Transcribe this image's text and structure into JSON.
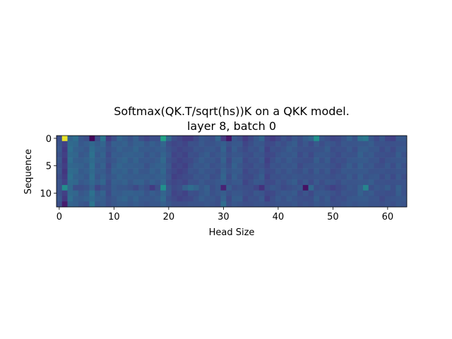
{
  "chart_data": {
    "type": "heatmap",
    "title_line1": "Softmax(QK.T/sqrt(hs))K on a QKK model.",
    "title_line2": "layer 8, batch 0",
    "xlabel": "Head Size",
    "ylabel": "Sequence",
    "xlim": [
      -0.5,
      63.5
    ],
    "ylim": [
      12.5,
      -0.5
    ],
    "xticks": [
      0,
      10,
      20,
      30,
      40,
      50,
      60
    ],
    "yticks": [
      0,
      5,
      10
    ],
    "colormap": "viridis",
    "n_rows": 13,
    "n_cols": 64,
    "row0": [
      0.3,
      0.98,
      0.4,
      0.45,
      0.34,
      0.3,
      0.02,
      0.3,
      0.48,
      0.22,
      0.3,
      0.4,
      0.36,
      0.32,
      0.38,
      0.3,
      0.26,
      0.3,
      0.3,
      0.72,
      0.42,
      0.3,
      0.26,
      0.22,
      0.22,
      0.28,
      0.34,
      0.32,
      0.3,
      0.4,
      0.22,
      0.08,
      0.34,
      0.3,
      0.22,
      0.28,
      0.34,
      0.4,
      0.26,
      0.22,
      0.26,
      0.32,
      0.28,
      0.34,
      0.3,
      0.36,
      0.4,
      0.62,
      0.34,
      0.3,
      0.26,
      0.28,
      0.32,
      0.38,
      0.32,
      0.46,
      0.5,
      0.34,
      0.28,
      0.34,
      0.26,
      0.24,
      0.34,
      0.34
    ],
    "rows_mid": [
      0.32,
      0.22,
      0.44,
      0.4,
      0.36,
      0.36,
      0.44,
      0.36,
      0.38,
      0.3,
      0.36,
      0.38,
      0.38,
      0.36,
      0.38,
      0.36,
      0.34,
      0.36,
      0.36,
      0.4,
      0.32,
      0.26,
      0.26,
      0.26,
      0.3,
      0.32,
      0.34,
      0.34,
      0.32,
      0.32,
      0.38,
      0.3,
      0.36,
      0.34,
      0.28,
      0.3,
      0.32,
      0.34,
      0.26,
      0.3,
      0.32,
      0.32,
      0.34,
      0.34,
      0.3,
      0.32,
      0.3,
      0.34,
      0.32,
      0.34,
      0.3,
      0.3,
      0.32,
      0.34,
      0.32,
      0.36,
      0.34,
      0.34,
      0.32,
      0.3,
      0.32,
      0.3,
      0.34,
      0.32
    ],
    "row9": [
      0.32,
      0.6,
      0.42,
      0.3,
      0.3,
      0.32,
      0.38,
      0.26,
      0.32,
      0.3,
      0.36,
      0.34,
      0.34,
      0.32,
      0.28,
      0.34,
      0.3,
      0.22,
      0.3,
      0.62,
      0.34,
      0.28,
      0.3,
      0.38,
      0.44,
      0.4,
      0.34,
      0.38,
      0.3,
      0.34,
      0.12,
      0.36,
      0.3,
      0.32,
      0.3,
      0.3,
      0.26,
      0.18,
      0.3,
      0.34,
      0.32,
      0.28,
      0.3,
      0.32,
      0.34,
      0.06,
      0.42,
      0.3,
      0.32,
      0.28,
      0.24,
      0.28,
      0.3,
      0.34,
      0.32,
      0.38,
      0.56,
      0.3,
      0.34,
      0.32,
      0.36,
      0.3,
      0.38,
      0.32
    ],
    "row12": [
      0.3,
      0.1,
      0.4,
      0.38,
      0.34,
      0.32,
      0.48,
      0.34,
      0.36,
      0.3,
      0.34,
      0.36,
      0.36,
      0.34,
      0.36,
      0.34,
      0.32,
      0.34,
      0.34,
      0.38,
      0.34,
      0.3,
      0.3,
      0.3,
      0.32,
      0.32,
      0.32,
      0.34,
      0.32,
      0.3,
      0.44,
      0.3,
      0.34,
      0.32,
      0.3,
      0.3,
      0.32,
      0.32,
      0.3,
      0.3,
      0.32,
      0.32,
      0.32,
      0.34,
      0.3,
      0.32,
      0.3,
      0.34,
      0.32,
      0.34,
      0.3,
      0.3,
      0.32,
      0.34,
      0.32,
      0.34,
      0.34,
      0.32,
      0.32,
      0.3,
      0.32,
      0.3,
      0.34,
      0.32
    ]
  }
}
